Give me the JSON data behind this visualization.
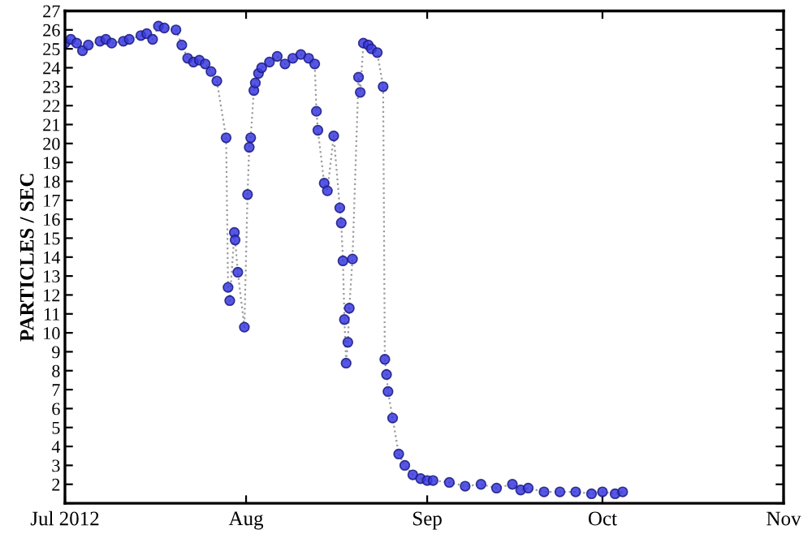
{
  "chart_data": {
    "type": "line",
    "ylabel": "PARTICLES / SEC",
    "marker": "circle",
    "line_style": "dotted",
    "grid": false,
    "xlim": [
      "2012-07-01",
      "2012-11-01"
    ],
    "xticks": [
      {
        "value": "2012-07-01",
        "label": "Jul 2012"
      },
      {
        "value": "2012-08-01",
        "label": "Aug"
      },
      {
        "value": "2012-09-01",
        "label": "Sep"
      },
      {
        "value": "2012-10-01",
        "label": "Oct"
      },
      {
        "value": "2012-11-01",
        "label": "Nov"
      }
    ],
    "ylim": [
      1,
      27
    ],
    "yticks": [
      {
        "value": 1,
        "label": null
      },
      2,
      3,
      4,
      5,
      6,
      7,
      8,
      9,
      10,
      11,
      12,
      13,
      14,
      15,
      16,
      17,
      18,
      19,
      20,
      21,
      22,
      23,
      24,
      25,
      26,
      27
    ],
    "series": [
      {
        "color": "#3a3ae0",
        "x": [
          "2012-07-01",
          "2012-07-02",
          "2012-07-03",
          "2012-07-04",
          "2012-07-05",
          "2012-07-07",
          "2012-07-08",
          "2012-07-09",
          "2012-07-11",
          "2012-07-12",
          "2012-07-14",
          "2012-07-15",
          "2012-07-16",
          "2012-07-17",
          "2012-07-18",
          "2012-07-20",
          "2012-07-21",
          "2012-07-22",
          "2012-07-23",
          "2012-07-24",
          "2012-07-25",
          "2012-07-26",
          "2012-07-27",
          "2012-07-28T14:00",
          "2012-07-28T22:00",
          "2012-07-29T05:00",
          "2012-07-30T00:00",
          "2012-07-30T03:00",
          "2012-07-30T14:00",
          "2012-07-31T17:00",
          "2012-08-01T06:00",
          "2012-08-01T13:00",
          "2012-08-01T19:00",
          "2012-08-02T08:00",
          "2012-08-02T14:00",
          "2012-08-03T03:00",
          "2012-08-03T16:00",
          "2012-08-05T00:00",
          "2012-08-06T08:00",
          "2012-08-07T16:00",
          "2012-08-09T00:00",
          "2012-08-10T09:00",
          "2012-08-11T17:00",
          "2012-08-12T18:00",
          "2012-08-13T01:00",
          "2012-08-13T07:00",
          "2012-08-14T09:00",
          "2012-08-14T22:00",
          "2012-08-16T00:00",
          "2012-08-17T01:00",
          "2012-08-17T07:00",
          "2012-08-17T14:00",
          "2012-08-17T20:00",
          "2012-08-18T03:00",
          "2012-08-18T10:00",
          "2012-08-18T16:00",
          "2012-08-19T05:00",
          "2012-08-20T06:00",
          "2012-08-20T13:00",
          "2012-08-21T02:00",
          "2012-08-21T22:00",
          "2012-08-22T11:00",
          "2012-08-23T11:00",
          "2012-08-24T11:00",
          "2012-08-24T18:00",
          "2012-08-25T01:00",
          "2012-08-25T07:00",
          "2012-08-26T02:00",
          "2012-08-27T03:00",
          "2012-08-28T04:00",
          "2012-08-29T13:00",
          "2012-08-30T21:00",
          "2012-09-01T00:00",
          "2012-09-02T00:00",
          "2012-09-04T19:00",
          "2012-09-07T12:00",
          "2012-09-10T05:00",
          "2012-09-12T21:00",
          "2012-09-15T14:00",
          "2012-09-17T00:00",
          "2012-09-18T07:00",
          "2012-09-21T00:00",
          "2012-09-23T17:00",
          "2012-09-26T10:00",
          "2012-09-29T03:00",
          "2012-10-01T00:00",
          "2012-10-03T04:00",
          "2012-10-04T11:00"
        ],
        "values": [
          25.3,
          25.5,
          25.3,
          24.9,
          25.2,
          25.4,
          25.5,
          25.3,
          25.4,
          25.5,
          25.7,
          25.8,
          25.5,
          26.2,
          26.1,
          26.0,
          25.2,
          24.5,
          24.3,
          24.4,
          24.2,
          23.8,
          23.3,
          20.3,
          12.4,
          11.7,
          15.3,
          14.9,
          13.2,
          10.3,
          17.3,
          19.8,
          20.3,
          22.8,
          23.2,
          23.7,
          24.0,
          24.3,
          24.6,
          24.2,
          24.5,
          24.7,
          24.5,
          24.2,
          21.7,
          20.7,
          17.9,
          17.5,
          20.4,
          16.6,
          15.8,
          13.8,
          10.7,
          8.4,
          9.5,
          11.3,
          13.9,
          23.5,
          22.7,
          25.3,
          25.2,
          25.0,
          24.8,
          23.0,
          8.6,
          7.8,
          6.9,
          5.5,
          3.6,
          3.0,
          2.5,
          2.3,
          2.2,
          2.2,
          2.1,
          1.9,
          2.0,
          1.8,
          2.0,
          1.7,
          1.8,
          1.6,
          1.6,
          1.6,
          1.5,
          1.6,
          1.5,
          1.6
        ]
      }
    ]
  }
}
